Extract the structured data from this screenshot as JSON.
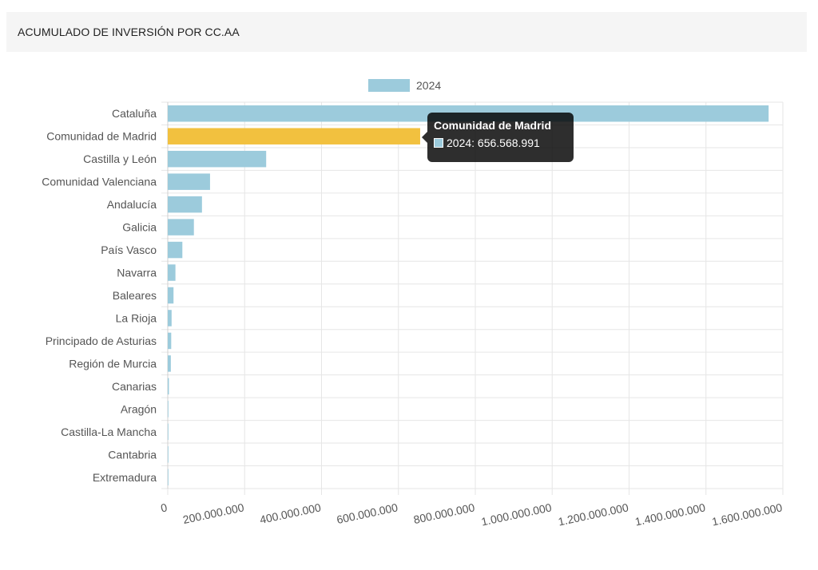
{
  "header": {
    "title": "ACUMULADO DE INVERSIÓN POR CC.AA"
  },
  "colors": {
    "series": "#9ccbdc",
    "highlight": "#f2c13f",
    "grid": "#e6e6e6",
    "tooltip_bg": "#1f1f1f"
  },
  "chart_data": {
    "type": "bar",
    "orientation": "horizontal",
    "title": "",
    "xlabel": "",
    "ylabel": "",
    "xlim": [
      0,
      1600000000
    ],
    "x_ticks": [
      0,
      200000000,
      400000000,
      600000000,
      800000000,
      1000000000,
      1200000000,
      1400000000,
      1600000000
    ],
    "x_tick_labels": [
      "0",
      "200.000.000",
      "400.000.000",
      "600.000.000",
      "800.000.000",
      "1.000.000.000",
      "1.200.000.000",
      "1.400.000.000",
      "1.600.000.000"
    ],
    "grid": true,
    "legend_position": "top-center",
    "categories": [
      "Cataluña",
      "Comunidad de Madrid",
      "Castilla y León",
      "Comunidad Valenciana",
      "Andalucía",
      "Galicia",
      "País Vasco",
      "Navarra",
      "Baleares",
      "La Rioja",
      "Principado de Asturias",
      "Región de Murcia",
      "Canarias",
      "Aragón",
      "Castilla-La Mancha",
      "Cantabria",
      "Extremadura"
    ],
    "series": [
      {
        "name": "2024",
        "values": [
          1563000000,
          656568991,
          256000000,
          110000000,
          89000000,
          68000000,
          38000000,
          20000000,
          15000000,
          10000000,
          9000000,
          8000000,
          3000000,
          1500000,
          1000000,
          800000,
          500000
        ]
      }
    ],
    "highlighted_category": "Comunidad de Madrid"
  },
  "tooltip": {
    "title": "Comunidad de Madrid",
    "body": "2024: 656.568.991"
  }
}
